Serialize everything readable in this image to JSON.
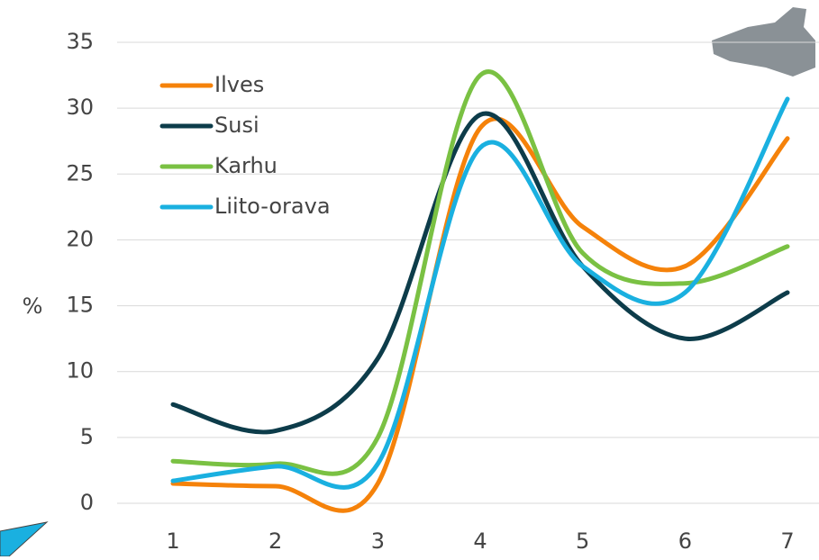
{
  "chart_data": {
    "type": "line",
    "y_label": "%",
    "categories": [
      "1",
      "2",
      "3",
      "4",
      "5",
      "6",
      "7"
    ],
    "series": [
      {
        "name": "Ilves",
        "color": "#f5820a",
        "values": [
          1.5,
          1.3,
          1.5,
          28.5,
          21,
          18,
          27.7
        ]
      },
      {
        "name": "Susi",
        "color": "#0d3c4a",
        "values": [
          7.5,
          5.5,
          11,
          29.5,
          18,
          12.5,
          16
        ]
      },
      {
        "name": "Karhu",
        "color": "#7ac143",
        "values": [
          3.2,
          3,
          5,
          32.5,
          19,
          16.7,
          19.5
        ]
      },
      {
        "name": "Liito-orava",
        "color": "#1ab0e0",
        "values": [
          1.7,
          2.8,
          3,
          27,
          18,
          16,
          30.7
        ]
      }
    ],
    "ylim": [
      0,
      35
    ],
    "yticks": [
      0,
      5,
      10,
      15,
      20,
      25,
      30,
      35
    ],
    "grid": true,
    "smooth": true,
    "legend": "top-left"
  }
}
